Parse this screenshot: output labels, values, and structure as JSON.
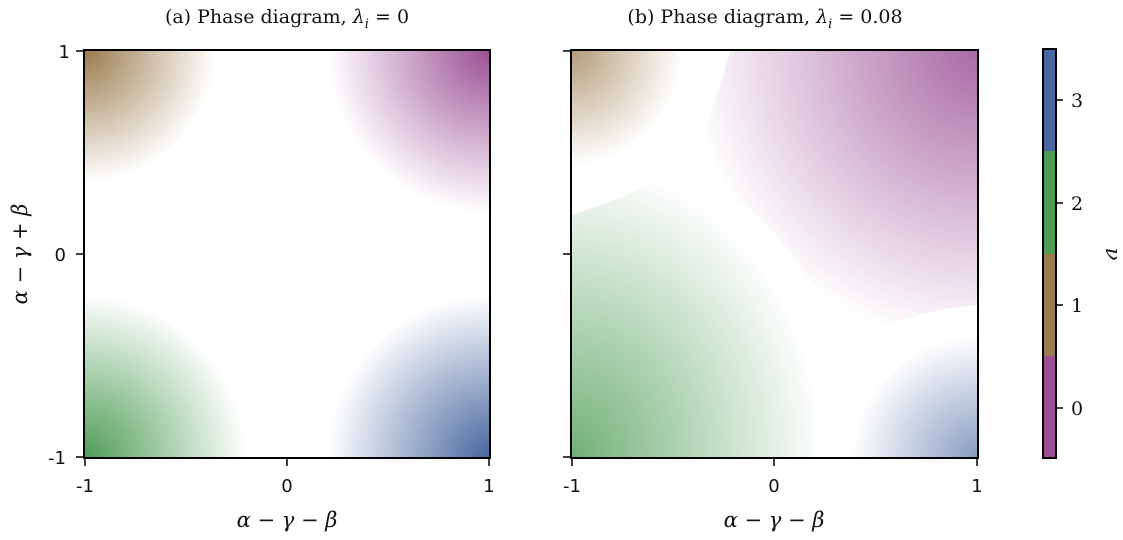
{
  "chart_data": [
    {
      "type": "heatmap",
      "title": "(a) Phase diagram, λ_i = 0",
      "title_text": "(a) Phase diagram, ",
      "title_math": "λ",
      "title_sub": "i",
      "title_value": " = 0",
      "xlabel": "α − γ − β",
      "ylabel": "α − γ + β",
      "xlim": [
        -1,
        1
      ],
      "ylim": [
        -1,
        1
      ],
      "xticks": [
        "-1",
        "0",
        "1"
      ],
      "yticks": [
        "-1",
        "0",
        "1"
      ],
      "lambda_i": 0,
      "grid": false,
      "regions": [
        {
          "quadrant": "top-left",
          "nu": 1
        },
        {
          "quadrant": "top-right",
          "nu": 0
        },
        {
          "quadrant": "bottom-left",
          "nu": 2
        },
        {
          "quadrant": "bottom-right",
          "nu": 3
        }
      ]
    },
    {
      "type": "heatmap",
      "title": "(b) Phase diagram, λ_i = 0.08",
      "title_text": "(b) Phase diagram, ",
      "title_math": "λ",
      "title_sub": "i",
      "title_value": " = 0.08",
      "xlabel": "α − γ − β",
      "ylabel": "",
      "xlim": [
        -1,
        1
      ],
      "ylim": [
        -1,
        1
      ],
      "xticks": [
        "-1",
        "0",
        "1"
      ],
      "yticks": [],
      "lambda_i": 0.08,
      "grid": false,
      "regions": [
        {
          "quadrant": "top-left",
          "nu": 1
        },
        {
          "quadrant": "top-right",
          "nu": 0
        },
        {
          "quadrant": "bottom-left",
          "nu": 2
        },
        {
          "quadrant": "bottom-right",
          "nu": 3
        }
      ]
    }
  ],
  "colorbar": {
    "label": "ν",
    "range": [
      -0.5,
      3.5
    ],
    "ticks": [
      "0",
      "1",
      "2",
      "3"
    ],
    "tick_values": [
      0,
      1,
      2,
      3
    ],
    "placement": "right",
    "colors": {
      "0": "#9b4f95",
      "1": "#9a7b4d",
      "2": "#4e9c56",
      "3": "#4866a0"
    }
  }
}
